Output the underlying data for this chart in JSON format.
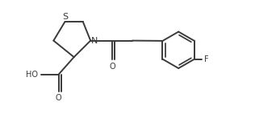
{
  "bg_color": "#ffffff",
  "line_color": "#3a3a3a",
  "text_color": "#3a3a3a",
  "line_width": 1.4,
  "font_size": 7.0,
  "figsize": [
    3.16,
    1.47
  ],
  "dpi": 100,
  "xlim": [
    0.0,
    10.0
  ],
  "ylim": [
    0.0,
    4.65
  ]
}
